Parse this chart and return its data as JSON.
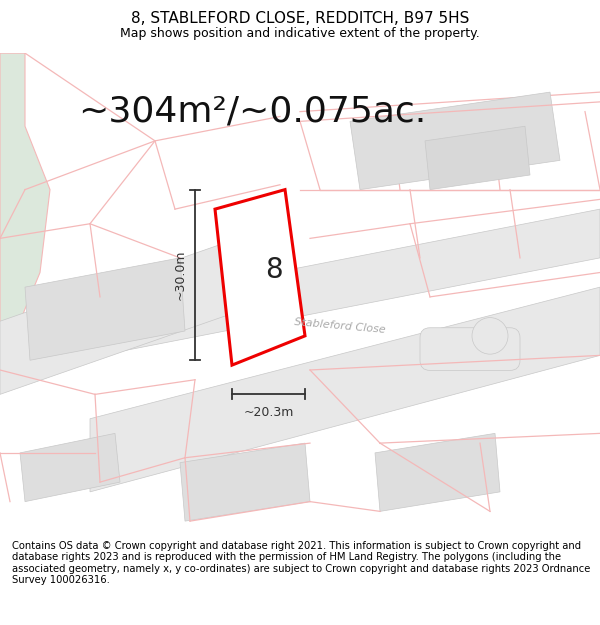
{
  "title": "8, STABLEFORD CLOSE, REDDITCH, B97 5HS",
  "subtitle": "Map shows position and indicative extent of the property.",
  "area_text": "~304m²/~0.075ac.",
  "label_number": "8",
  "dim_vertical": "~30.0m",
  "dim_horizontal": "~20.3m",
  "street_label": "Stableford Close",
  "footer_text": "Contains OS data © Crown copyright and database right 2021. This information is subject to Crown copyright and database rights 2023 and is reproduced with the permission of HM Land Registry. The polygons (including the associated geometry, namely x, y co-ordinates) are subject to Crown copyright and database rights 2023 Ordnance Survey 100026316.",
  "bg_color": "#ffffff",
  "map_bg": "#ffffff",
  "plot_fill": "#ffffff",
  "plot_edge": "#ee0000",
  "gray_fill": "#e8e8e8",
  "gray_fill2": "#dedede",
  "green_fill": "#dce8dc",
  "neighbor_line": "#f4b8b8",
  "dim_line_color": "#333333",
  "title_fontsize": 11,
  "subtitle_fontsize": 9,
  "area_fontsize": 26,
  "label_fontsize": 20,
  "footer_fontsize": 7.2,
  "street_fontsize": 8
}
